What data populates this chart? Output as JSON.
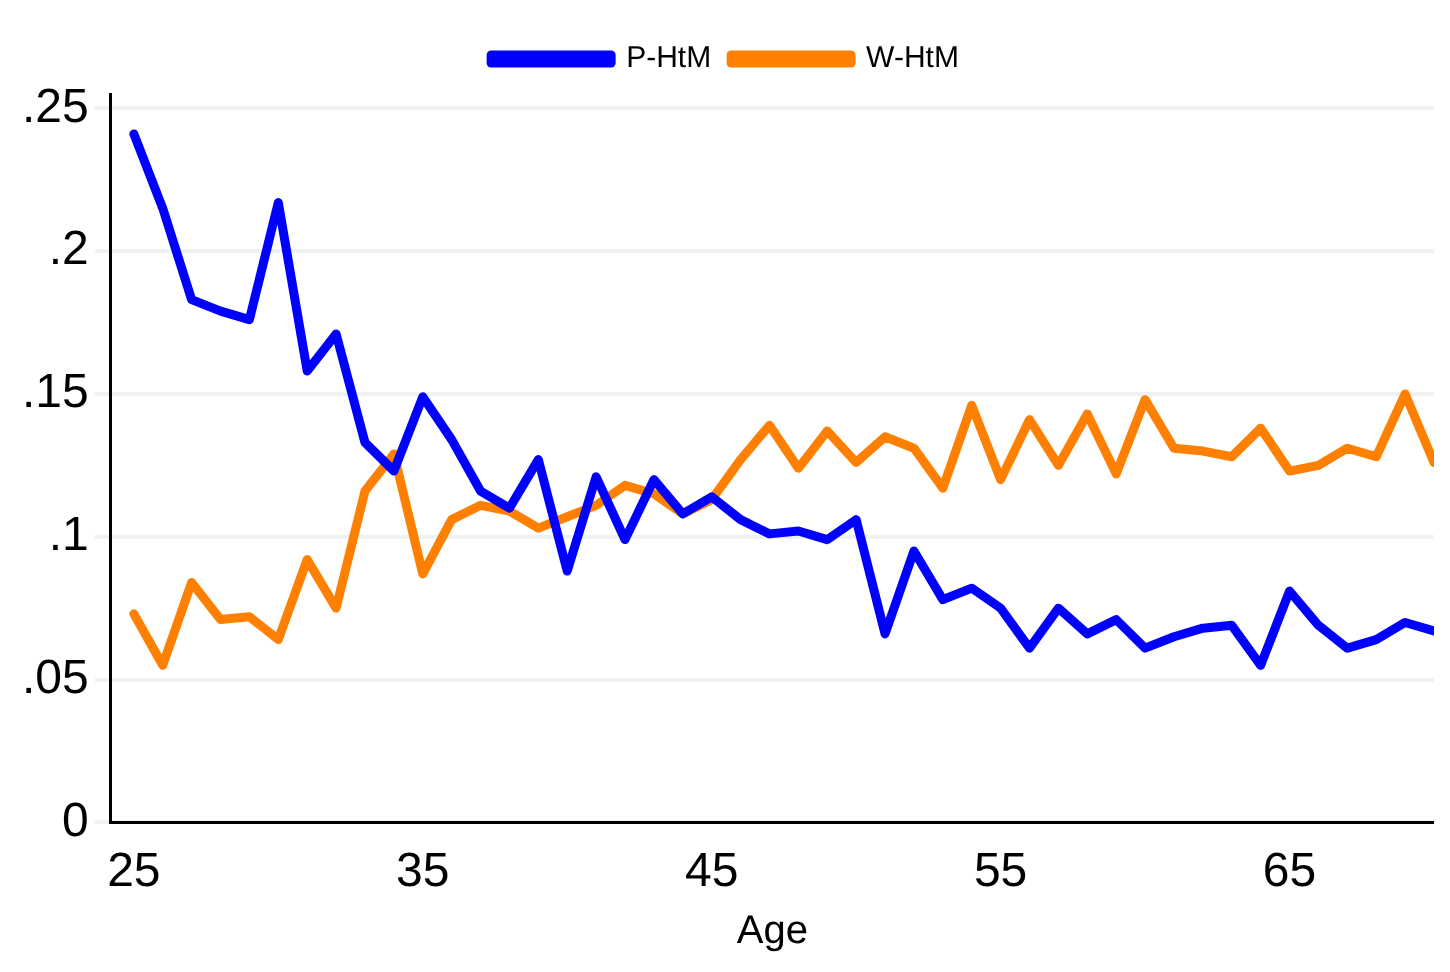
{
  "chart_data": {
    "type": "line",
    "xlabel": "Age",
    "x": [
      25,
      26,
      27,
      28,
      29,
      30,
      31,
      32,
      33,
      34,
      35,
      36,
      37,
      38,
      39,
      40,
      41,
      42,
      43,
      44,
      45,
      46,
      47,
      48,
      49,
      50,
      51,
      52,
      53,
      54,
      55,
      56,
      57,
      58,
      59,
      60,
      61,
      62,
      63,
      64,
      65,
      66,
      67,
      68,
      69,
      70
    ],
    "series": [
      {
        "name": "P-HtM",
        "color": "#0000ff",
        "values": [
          0.241,
          0.215,
          0.183,
          0.179,
          0.176,
          0.217,
          0.158,
          0.171,
          0.133,
          0.123,
          0.149,
          0.134,
          0.116,
          0.11,
          0.127,
          0.088,
          0.121,
          0.099,
          0.12,
          0.108,
          0.114,
          0.106,
          0.101,
          0.102,
          0.099,
          0.106,
          0.066,
          0.095,
          0.078,
          0.082,
          0.075,
          0.061,
          0.075,
          0.066,
          0.071,
          0.061,
          0.065,
          0.068,
          0.069,
          0.055,
          0.081,
          0.069,
          0.061,
          0.064,
          0.07,
          0.067
        ]
      },
      {
        "name": "W-HtM",
        "color": "#ff8000",
        "values": [
          0.073,
          0.055,
          0.084,
          0.071,
          0.072,
          0.064,
          0.092,
          0.075,
          0.116,
          0.129,
          0.087,
          0.106,
          0.111,
          0.109,
          0.103,
          0.107,
          0.111,
          0.118,
          0.115,
          0.108,
          0.113,
          0.127,
          0.139,
          0.124,
          0.137,
          0.126,
          0.135,
          0.131,
          0.117,
          0.146,
          0.12,
          0.141,
          0.125,
          0.143,
          0.122,
          0.148,
          0.131,
          0.13,
          0.128,
          0.138,
          0.123,
          0.125,
          0.131,
          0.128,
          0.15,
          0.126
        ]
      }
    ],
    "xlim": [
      24.2,
      70
    ],
    "xticks": [
      25,
      35,
      45,
      55,
      65
    ],
    "ylim": [
      0,
      0.255
    ],
    "yticks": [
      {
        "value": 0,
        "label": "0"
      },
      {
        "value": 0.05,
        "label": ".05"
      },
      {
        "value": 0.1,
        "label": ".1"
      },
      {
        "value": 0.15,
        "label": ".15"
      },
      {
        "value": 0.2,
        "label": ".2"
      },
      {
        "value": 0.25,
        "label": ".25"
      }
    ],
    "grid": "y",
    "legend": "top",
    "marker": "none",
    "line_style": "solid"
  }
}
